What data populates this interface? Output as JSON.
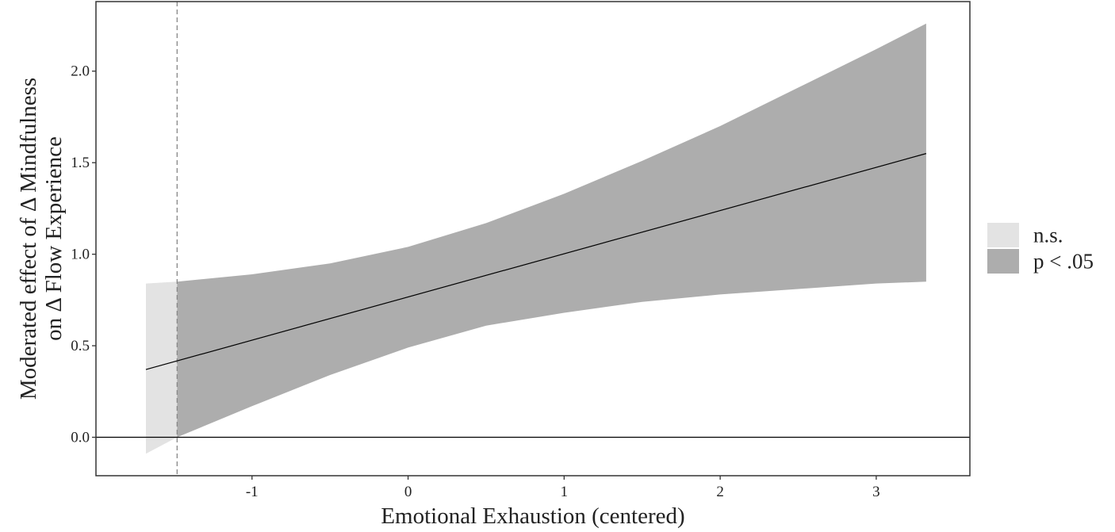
{
  "chart_data": {
    "type": "area",
    "xlabel": "Emotional Exhaustion (centered)",
    "ylabel_line1": "Moderated effect of Δ Mindfulness",
    "ylabel_line2": "on Δ Flow Experience",
    "xlim": [
      -2.0,
      3.6
    ],
    "ylim": [
      -0.21,
      2.38
    ],
    "x_ticks": [
      -1,
      0,
      1,
      2,
      3
    ],
    "x_tick_labels": [
      "-1",
      "0",
      "1",
      "2",
      "3"
    ],
    "y_ticks": [
      0.0,
      0.5,
      1.0,
      1.5,
      2.0
    ],
    "y_tick_labels": [
      "0.0",
      "0.5",
      "1.0",
      "1.5",
      "2.0"
    ],
    "grid": false,
    "legend_position": "right",
    "legend": [
      {
        "label": "n.s.",
        "color": "#e3e3e3"
      },
      {
        "label": "p < .05",
        "color": "#adadad"
      }
    ],
    "reference_line_y": 0.0,
    "significance_threshold_x": -1.48,
    "effect_line": {
      "x": [
        -1.68,
        3.32
      ],
      "y": [
        0.37,
        1.55
      ]
    },
    "confidence_band": {
      "x": [
        -1.68,
        -1.48,
        -1.0,
        -0.5,
        0.0,
        0.5,
        1.0,
        1.5,
        2.0,
        2.5,
        3.0,
        3.32
      ],
      "lower": [
        -0.09,
        0.0,
        0.17,
        0.34,
        0.49,
        0.61,
        0.68,
        0.74,
        0.78,
        0.81,
        0.84,
        0.85
      ],
      "upper": [
        0.84,
        0.85,
        0.89,
        0.95,
        1.04,
        1.17,
        1.33,
        1.51,
        1.7,
        1.91,
        2.12,
        2.26
      ]
    },
    "colors": {
      "nonsignificant_band": "#e3e3e3",
      "significant_band": "#adadad",
      "line": "#000000",
      "threshold_line": "#888888"
    }
  }
}
